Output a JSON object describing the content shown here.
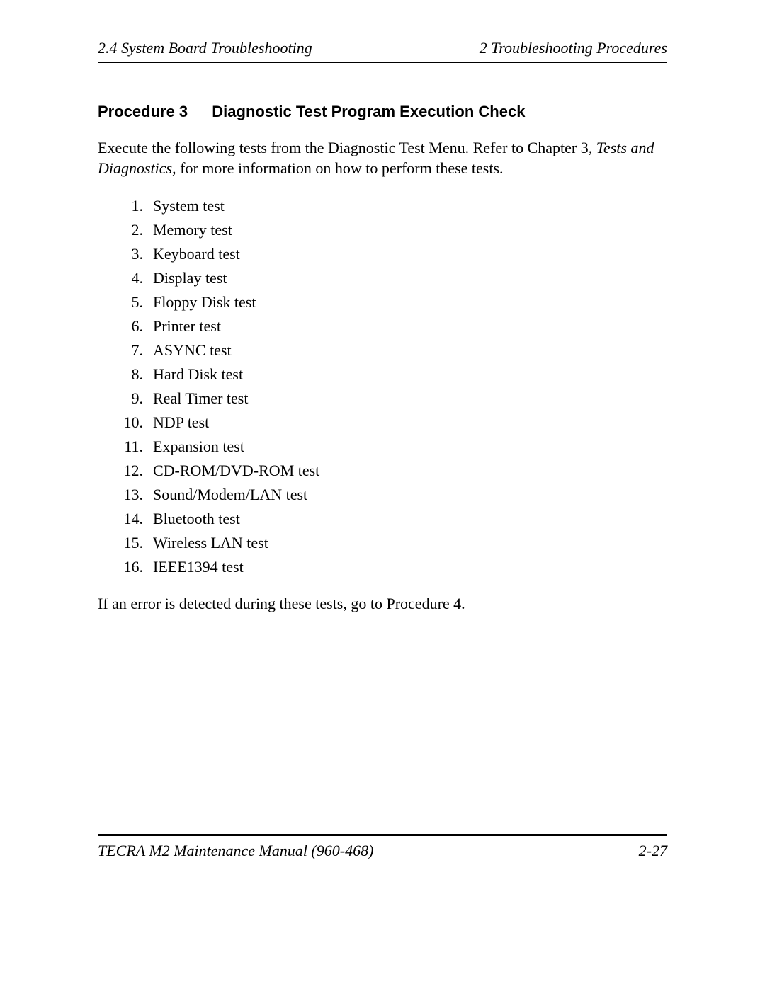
{
  "header": {
    "left": "2.4 System Board Troubleshooting",
    "right": "2  Troubleshooting Procedures"
  },
  "section": {
    "procedure_label": "Procedure 3",
    "title": "Diagnostic Test Program Execution Check"
  },
  "intro": {
    "part1": "Execute the following tests from the Diagnostic Test Menu. Refer to Chapter 3, ",
    "italic": "Tests and Diagnostics,",
    "part2": " for more information on how to perform these tests."
  },
  "tests": [
    "System test",
    "Memory test",
    "Keyboard test",
    "Display test",
    "Floppy Disk test",
    "Printer test",
    "ASYNC test",
    "Hard Disk test",
    "Real Timer test",
    "NDP test",
    "Expansion test",
    "CD-ROM/DVD-ROM test",
    "Sound/Modem/LAN test",
    "Bluetooth test",
    "Wireless LAN test",
    "IEEE1394 test"
  ],
  "closing": "If an error is detected during these tests, go to Procedure 4.",
  "footer": {
    "left": "TECRA M2 Maintenance Manual (960-468)",
    "right": "2-27"
  },
  "colors": {
    "text": "#000000",
    "background": "#ffffff",
    "rule": "#000000"
  },
  "typography": {
    "body_font": "Times New Roman",
    "heading_font": "Arial",
    "body_size_pt": 12,
    "heading_size_pt": 12
  }
}
